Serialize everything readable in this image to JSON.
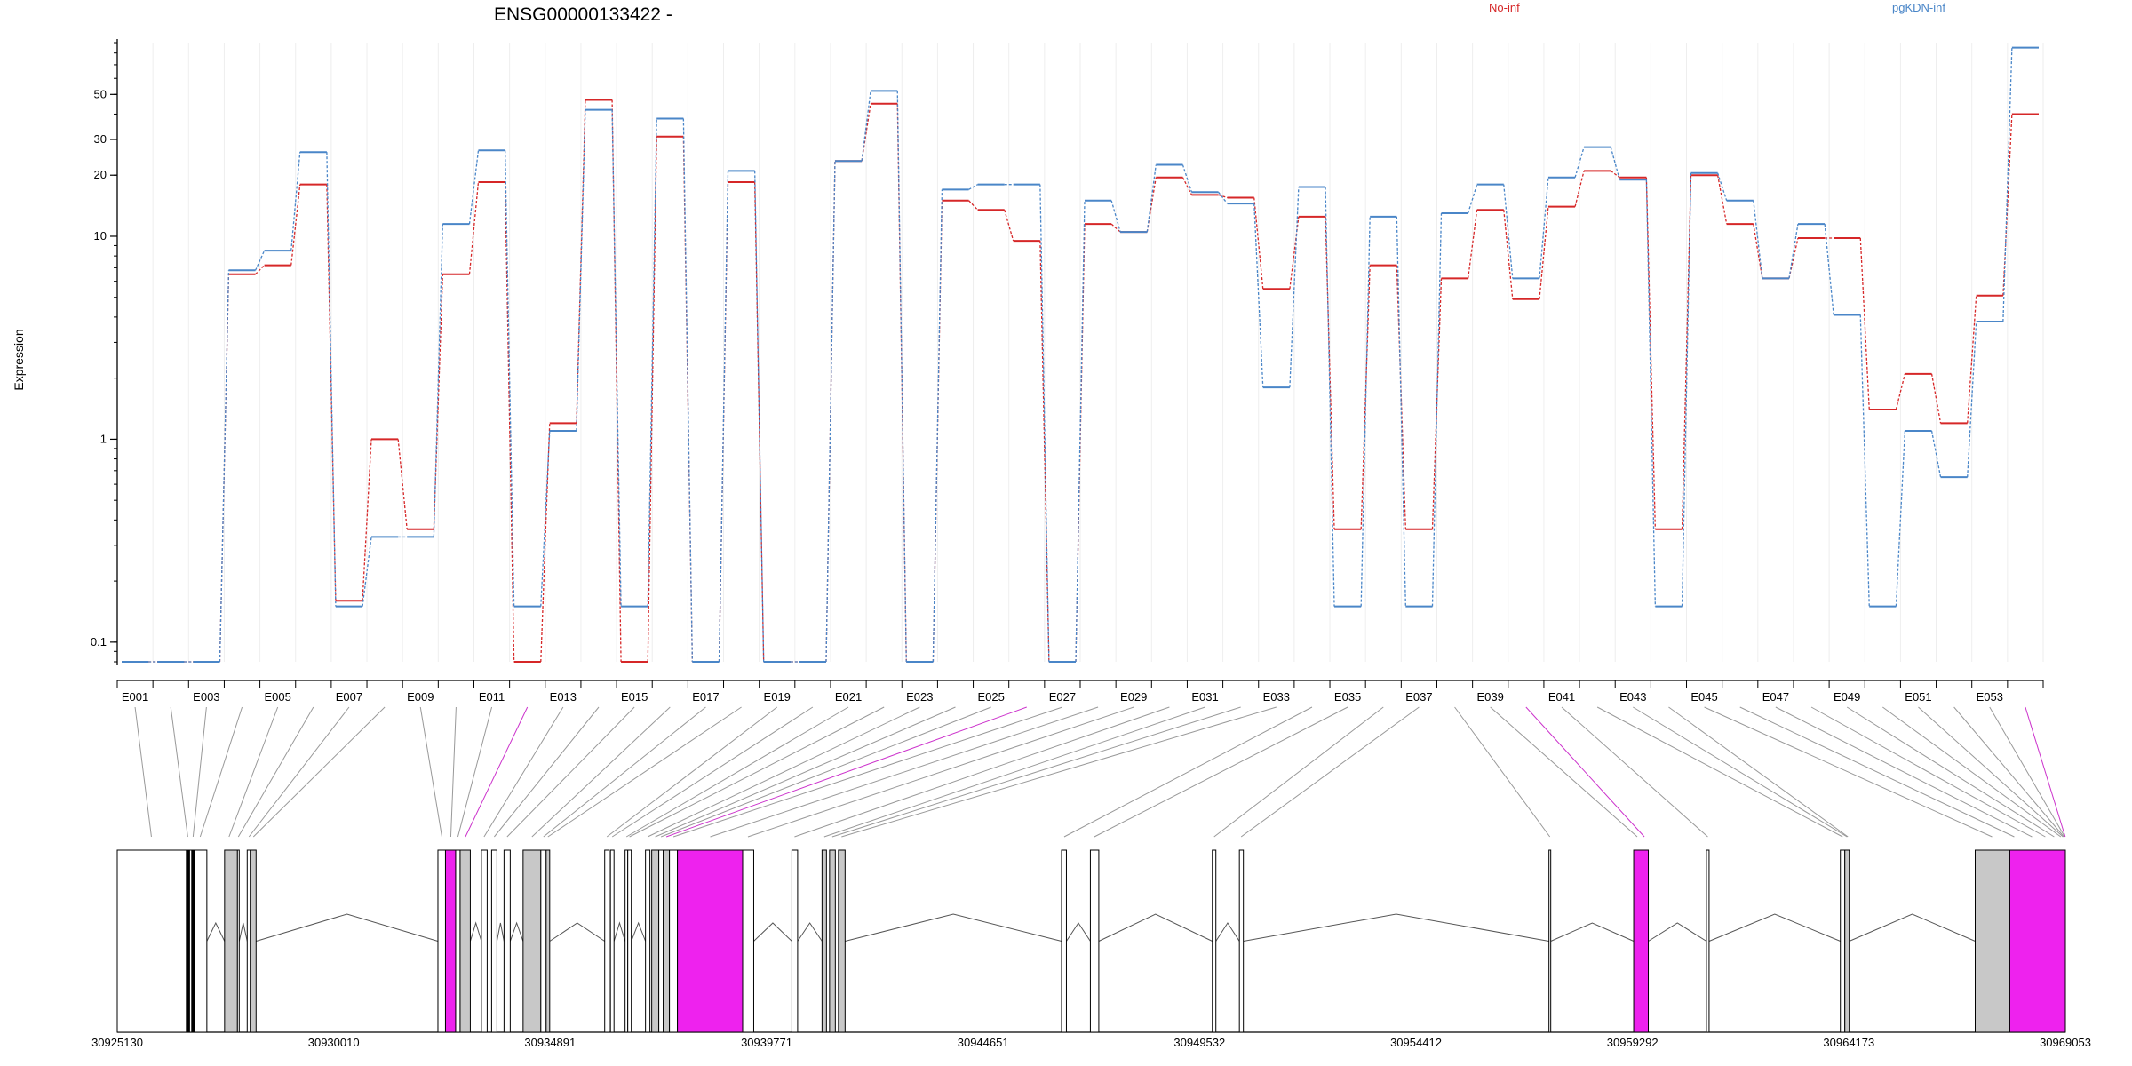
{
  "chart_data": {
    "type": "line",
    "title": "ENSG00000133422 -",
    "ylabel": "Expression",
    "y_scale": "log",
    "ylim": [
      0.08,
      90
    ],
    "y_ticks": [
      0.1,
      1,
      10,
      20,
      30,
      50
    ],
    "grid": true,
    "legend_placement": "top-right",
    "exon_tick_labels": [
      "E001",
      "E003",
      "E005",
      "E007",
      "E009",
      "E011",
      "E013",
      "E015",
      "E017",
      "E019",
      "E021",
      "E023",
      "E025",
      "E027",
      "E029",
      "E031",
      "E033",
      "E035",
      "E037",
      "E039",
      "E041",
      "E043",
      "E045",
      "E047",
      "E049",
      "E051",
      "E053"
    ],
    "categories": [
      "E001",
      "E002",
      "E003",
      "E004",
      "E005",
      "E006",
      "E007",
      "E008",
      "E009",
      "E010",
      "E011",
      "E012",
      "E013",
      "E014",
      "E015",
      "E016",
      "E017",
      "E018",
      "E019",
      "E020",
      "E021",
      "E022",
      "E023",
      "E024",
      "E025",
      "E026",
      "E027",
      "E028",
      "E029",
      "E030",
      "E031",
      "E032",
      "E033",
      "E034",
      "E035",
      "E036",
      "E037",
      "E038",
      "E039",
      "E040",
      "E041",
      "E042",
      "E043",
      "E044",
      "E045",
      "E046",
      "E047",
      "E048",
      "E049",
      "E050",
      "E051",
      "E052",
      "E053",
      "E054"
    ],
    "series": [
      {
        "name": "No-inf",
        "color": "#d62728",
        "values": [
          0.08,
          0.08,
          0.08,
          6.5,
          7.2,
          18,
          0.16,
          1.0,
          0.36,
          6.5,
          18.5,
          0.08,
          1.2,
          47,
          0.08,
          31,
          0.08,
          18.5,
          0.08,
          0.08,
          23.5,
          45,
          0.08,
          15,
          13.5,
          9.5,
          0.08,
          11.5,
          10.5,
          19.5,
          16,
          15.5,
          5.5,
          12.5,
          0.36,
          7.2,
          0.36,
          6.2,
          13.5,
          4.9,
          14,
          21,
          19.5,
          0.36,
          20,
          11.5,
          6.2,
          9.8,
          9.8,
          1.4,
          2.1,
          1.2,
          5.1,
          40
        ]
      },
      {
        "name": "pgKDN-inf",
        "color": "#4a86c8",
        "values": [
          0.08,
          0.08,
          0.08,
          6.8,
          8.5,
          26,
          0.15,
          0.33,
          0.33,
          11.5,
          26.5,
          0.15,
          1.1,
          42,
          0.15,
          38,
          0.08,
          21,
          0.08,
          0.08,
          23.5,
          52,
          0.08,
          17,
          18,
          18,
          0.08,
          15,
          10.5,
          22.5,
          16.5,
          14.5,
          1.8,
          17.5,
          0.15,
          12.5,
          0.15,
          13,
          18,
          6.2,
          19.5,
          27.5,
          19,
          0.15,
          20.5,
          15,
          6.2,
          11.5,
          4.1,
          0.15,
          1.1,
          0.65,
          3.8,
          85
        ]
      }
    ],
    "gene_model": {
      "coord_labels": [
        "30925130",
        "30930010",
        "30934891",
        "30939771",
        "30944651",
        "30949532",
        "30954412",
        "30959292",
        "30964173",
        "30969053"
      ],
      "range": [
        30925130,
        30969053
      ],
      "exons": [
        {
          "start": 30925130,
          "end": 30926690,
          "fill": "white"
        },
        {
          "start": 30926690,
          "end": 30926760,
          "fill": "black"
        },
        {
          "start": 30926760,
          "end": 30926810,
          "fill": "white"
        },
        {
          "start": 30926810,
          "end": 30926880,
          "fill": "black"
        },
        {
          "start": 30926880,
          "end": 30927150,
          "fill": "white"
        },
        {
          "start": 30927550,
          "end": 30927840,
          "fill": "gray"
        },
        {
          "start": 30927840,
          "end": 30927880,
          "fill": "white"
        },
        {
          "start": 30928060,
          "end": 30928130,
          "fill": "white"
        },
        {
          "start": 30928130,
          "end": 30928260,
          "fill": "gray"
        },
        {
          "start": 30932360,
          "end": 30932530,
          "fill": "white"
        },
        {
          "start": 30932530,
          "end": 30932760,
          "fill": "magenta"
        },
        {
          "start": 30932760,
          "end": 30932860,
          "fill": "white"
        },
        {
          "start": 30932860,
          "end": 30933090,
          "fill": "gray"
        },
        {
          "start": 30933340,
          "end": 30933470,
          "fill": "white"
        },
        {
          "start": 30933570,
          "end": 30933690,
          "fill": "white"
        },
        {
          "start": 30933850,
          "end": 30933990,
          "fill": "white"
        },
        {
          "start": 30934280,
          "end": 30934680,
          "fill": "gray"
        },
        {
          "start": 30934680,
          "end": 30934800,
          "fill": "white"
        },
        {
          "start": 30934800,
          "end": 30934880,
          "fill": "gray"
        },
        {
          "start": 30936120,
          "end": 30936220,
          "fill": "white"
        },
        {
          "start": 30936250,
          "end": 30936330,
          "fill": "white"
        },
        {
          "start": 30936580,
          "end": 30936640,
          "fill": "white"
        },
        {
          "start": 30936640,
          "end": 30936720,
          "fill": "white"
        },
        {
          "start": 30937040,
          "end": 30937140,
          "fill": "white"
        },
        {
          "start": 30937180,
          "end": 30937340,
          "fill": "gray"
        },
        {
          "start": 30937340,
          "end": 30937440,
          "fill": "white"
        },
        {
          "start": 30937440,
          "end": 30937580,
          "fill": "gray"
        },
        {
          "start": 30937580,
          "end": 30937760,
          "fill": "white"
        },
        {
          "start": 30937760,
          "end": 30939230,
          "fill": "magenta"
        },
        {
          "start": 30939230,
          "end": 30939480,
          "fill": "white"
        },
        {
          "start": 30940340,
          "end": 30940470,
          "fill": "white"
        },
        {
          "start": 30941020,
          "end": 30941120,
          "fill": "gray"
        },
        {
          "start": 30941190,
          "end": 30941320,
          "fill": "gray"
        },
        {
          "start": 30941390,
          "end": 30941540,
          "fill": "gray"
        },
        {
          "start": 30946420,
          "end": 30946530,
          "fill": "white"
        },
        {
          "start": 30947070,
          "end": 30947260,
          "fill": "white"
        },
        {
          "start": 30949820,
          "end": 30949900,
          "fill": "white"
        },
        {
          "start": 30950430,
          "end": 30950520,
          "fill": "white"
        },
        {
          "start": 30957410,
          "end": 30957450,
          "fill": "white"
        },
        {
          "start": 30959320,
          "end": 30959650,
          "fill": "magenta"
        },
        {
          "start": 30960960,
          "end": 30961020,
          "fill": "white"
        },
        {
          "start": 30963980,
          "end": 30964080,
          "fill": "white"
        },
        {
          "start": 30964080,
          "end": 30964180,
          "fill": "gray"
        },
        {
          "start": 30967020,
          "end": 30967800,
          "fill": "gray"
        },
        {
          "start": 30967800,
          "end": 30969053,
          "fill": "magenta"
        }
      ],
      "exon_genomic_midpoints": [
        30925900,
        30926720,
        30926840,
        30927000,
        30927650,
        30927860,
        30928100,
        30928200,
        30932450,
        30932650,
        30932810,
        30932980,
        30933400,
        30933630,
        30933920,
        30934480,
        30934740,
        30934840,
        30936170,
        30936290,
        30936610,
        30936680,
        30937090,
        30937260,
        30937390,
        30937510,
        30937670,
        30938500,
        30939350,
        30940400,
        30941070,
        30941250,
        30941460,
        30946480,
        30947160,
        30949860,
        30950470,
        30957430,
        30959400,
        30959560,
        30960990,
        30964030,
        30964130,
        30964150,
        30967400,
        30967900,
        30968300,
        30968600,
        30968800,
        30968950,
        30969000,
        30969020,
        30969040,
        30969050
      ],
      "connector_color_index": [
        0,
        0,
        0,
        0,
        0,
        0,
        0,
        0,
        0,
        0,
        0,
        1,
        0,
        0,
        0,
        0,
        0,
        0,
        0,
        0,
        0,
        0,
        0,
        0,
        0,
        1,
        0,
        0,
        0,
        0,
        0,
        0,
        0,
        0,
        0,
        0,
        0,
        0,
        0,
        1,
        0,
        0,
        0,
        0,
        0,
        0,
        0,
        0,
        0,
        0,
        0,
        0,
        0,
        1
      ]
    }
  }
}
